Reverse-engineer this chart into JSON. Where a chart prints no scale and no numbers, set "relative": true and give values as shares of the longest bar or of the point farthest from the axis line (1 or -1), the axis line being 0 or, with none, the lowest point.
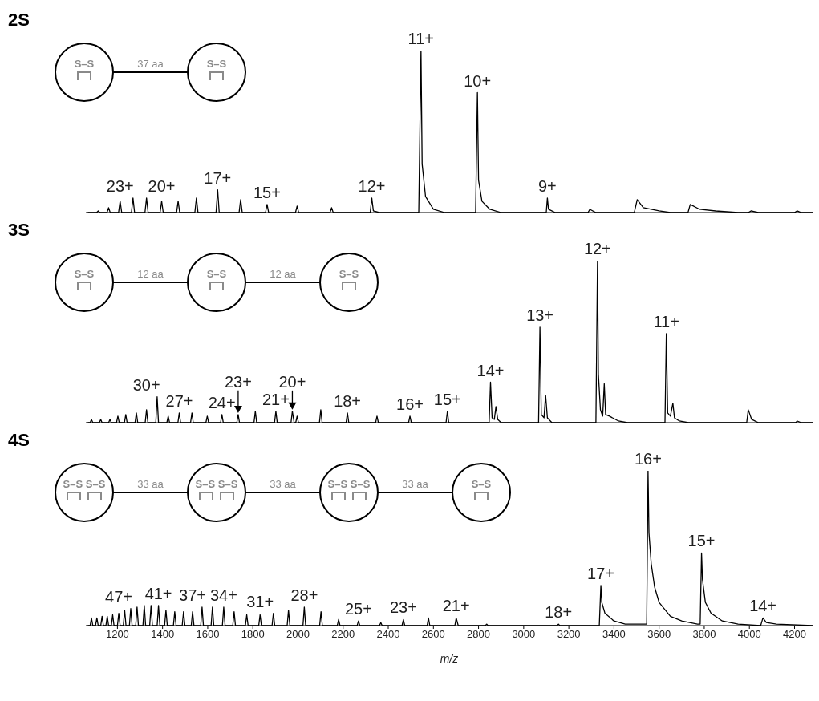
{
  "chart_data": [
    {
      "type": "line",
      "title": "2S",
      "relative": true,
      "xlim": [
        1060,
        4280
      ],
      "xticks": [
        1200,
        1400,
        1600,
        1800,
        2000,
        2200,
        2400,
        2600,
        2800,
        3000,
        3200,
        3400,
        3600,
        3800,
        4000,
        4200
      ],
      "tick_labels": false,
      "series": [
        {
          "color": "#000000",
          "x": [
            1070,
            1108,
            1115,
            1122,
            1154,
            1161,
            1168,
            1205,
            1212,
            1219,
            1262,
            1269,
            1276,
            1322,
            1329,
            1336,
            1389,
            1396,
            1403,
            1462,
            1469,
            1476,
            1543,
            1550,
            1557,
            1637,
            1644,
            1651,
            1739,
            1746,
            1753,
            1856,
            1863,
            1870,
            1989,
            1996,
            2003,
            2142,
            2149,
            2156,
            2320,
            2327,
            2334,
            2360,
            2535,
            2545,
            2550,
            2565,
            2600,
            2650,
            2787,
            2795,
            2800,
            2815,
            2850,
            2900,
            3100,
            3105,
            3110,
            3140,
            3285,
            3293,
            3320,
            3490,
            3503,
            3530,
            3600,
            3650,
            3728,
            3738,
            3780,
            3850,
            3950,
            3995,
            4007,
            4040,
            4200,
            4211,
            4230,
            4280
          ],
          "values": [
            0,
            0,
            0.01,
            0,
            0,
            0.03,
            0,
            0,
            0.07,
            0,
            0,
            0.09,
            0,
            0,
            0.09,
            0,
            0,
            0.07,
            0,
            0,
            0.07,
            0,
            0,
            0.09,
            0,
            0,
            0.14,
            0,
            0,
            0.08,
            0,
            0,
            0.05,
            0,
            0,
            0.04,
            0,
            0,
            0.03,
            0,
            0,
            0.09,
            0.01,
            0,
            0,
            1,
            0.3,
            0.1,
            0.02,
            0,
            0,
            0.74,
            0.2,
            0.07,
            0.02,
            0,
            0,
            0.09,
            0.02,
            0,
            0,
            0.02,
            0,
            0,
            0.08,
            0.03,
            0.01,
            0,
            0,
            0.05,
            0.02,
            0.01,
            0,
            0,
            0.01,
            0,
            0,
            0.01,
            0,
            0
          ]
        }
      ],
      "annotations": [
        "S–S",
        "37 aa",
        "S–S",
        {
          "text": "23+",
          "x": 1212,
          "y": 0.07
        },
        {
          "text": "20+",
          "x": 1396,
          "y": 0.07
        },
        {
          "text": "17+",
          "x": 1644,
          "y": 0.14
        },
        {
          "text": "15+",
          "x": 1863,
          "y": 0.05
        },
        {
          "text": "12+",
          "x": 2327,
          "y": 0.09
        },
        {
          "text": "11+",
          "x": 2545,
          "y": 1
        },
        {
          "text": "10+",
          "x": 2795,
          "y": 0.74
        },
        {
          "text": "9+",
          "x": 3105,
          "y": 0.09
        }
      ]
    },
    {
      "type": "line",
      "title": "3S",
      "relative": true,
      "xlim": [
        1060,
        4280
      ],
      "xticks": [
        1200,
        1400,
        1600,
        1800,
        2000,
        2200,
        2400,
        2600,
        2800,
        3000,
        3200,
        3400,
        3600,
        3800,
        4000,
        4200
      ],
      "tick_labels": false,
      "series": [
        {
          "color": "#000000",
          "x": [
            1070,
            1079,
            1085,
            1091,
            1120,
            1126,
            1132,
            1161,
            1167,
            1173,
            1196,
            1202,
            1208,
            1231,
            1237,
            1243,
            1278,
            1284,
            1290,
            1323,
            1329,
            1335,
            1370,
            1376,
            1382,
            1419,
            1425,
            1431,
            1468,
            1474,
            1480,
            1524,
            1530,
            1536,
            1592,
            1598,
            1604,
            1657,
            1663,
            1669,
            1729,
            1735,
            1741,
            1805,
            1811,
            1817,
            1896,
            1902,
            1908,
            1969,
            1975,
            1983,
            1990,
            1996,
            2002,
            2095,
            2101,
            2107,
            2213,
            2219,
            2225,
            2344,
            2350,
            2356,
            2490,
            2496,
            2502,
            2656,
            2662,
            2668,
            2847,
            2853,
            2860,
            2870,
            2877,
            2885,
            2900,
            3066,
            3072,
            3078,
            3090,
            3097,
            3105,
            3125,
            3320,
            3327,
            3331,
            3340,
            3350,
            3357,
            3363,
            3380,
            3420,
            3460,
            3626,
            3632,
            3638,
            3650,
            3661,
            3668,
            3690,
            3730,
            3988,
            3995,
            4010,
            4040,
            4205,
            4212,
            4230,
            4280
          ],
          "values": [
            0,
            0,
            0.02,
            0,
            0,
            0.02,
            0,
            0,
            0.02,
            0,
            0,
            0.04,
            0,
            0,
            0.05,
            0,
            0,
            0.06,
            0,
            0,
            0.08,
            0,
            0,
            0.16,
            0,
            0,
            0.04,
            0,
            0,
            0.06,
            0,
            0,
            0.06,
            0,
            0,
            0.04,
            0,
            0,
            0.05,
            0,
            0,
            0.05,
            0,
            0,
            0.07,
            0,
            0,
            0.07,
            0,
            0,
            0.07,
            0,
            0,
            0.04,
            0,
            0,
            0.08,
            0,
            0,
            0.06,
            0,
            0,
            0.04,
            0,
            0,
            0.04,
            0,
            0,
            0.07,
            0,
            0,
            0.25,
            0.03,
            0.02,
            0.1,
            0.02,
            0,
            0,
            0.59,
            0.05,
            0.03,
            0.17,
            0.03,
            0,
            0,
            1,
            0.3,
            0.08,
            0.04,
            0.24,
            0.05,
            0.04,
            0.01,
            0,
            0,
            0.55,
            0.06,
            0.04,
            0.12,
            0.03,
            0.01,
            0,
            0,
            0.08,
            0.02,
            0,
            0,
            0.01,
            0,
            0
          ]
        }
      ],
      "annotations": [
        "S–S",
        "12 aa",
        "S–S",
        "12 aa",
        "S–S",
        {
          "text": "30+",
          "x": 1329,
          "y": 0.08
        },
        {
          "text": "27+",
          "x": 1474,
          "y": 0.06
        },
        {
          "text": "24+",
          "x": 1663,
          "y": 0.05
        },
        {
          "text": "23+",
          "x": 1735,
          "y": 0.05
        },
        {
          "text": "21+",
          "x": 1902,
          "y": 0.07
        },
        {
          "text": "20+",
          "x": 1975,
          "y": 0.07
        },
        {
          "text": "18+",
          "x": 2219,
          "y": 0.06
        },
        {
          "text": "16+",
          "x": 2496,
          "y": 0.04
        },
        {
          "text": "15+",
          "x": 2662,
          "y": 0.07
        },
        {
          "text": "14+",
          "x": 2853,
          "y": 0.25
        },
        {
          "text": "13+",
          "x": 3072,
          "y": 0.59
        },
        {
          "text": "12+",
          "x": 3327,
          "y": 1
        },
        {
          "text": "11+",
          "x": 3632,
          "y": 0.55
        }
      ]
    },
    {
      "type": "line",
      "title": "4S",
      "relative": true,
      "xlim": [
        1060,
        4280
      ],
      "xticks": [
        1200,
        1400,
        1600,
        1800,
        2000,
        2200,
        2400,
        2600,
        2800,
        3000,
        3200,
        3400,
        3600,
        3800,
        4000,
        4200
      ],
      "xlabel": "m/z",
      "series": [
        {
          "color": "#000000",
          "x": [
            1070,
            1079,
            1085,
            1091,
            1103,
            1109,
            1115,
            1126,
            1132,
            1138,
            1149,
            1155,
            1161,
            1173,
            1179,
            1185,
            1200,
            1206,
            1212,
            1226,
            1232,
            1238,
            1253,
            1259,
            1265,
            1281,
            1287,
            1293,
            1313,
            1319,
            1325,
            1343,
            1349,
            1355,
            1376,
            1382,
            1388,
            1409,
            1415,
            1421,
            1448,
            1454,
            1460,
            1487,
            1493,
            1499,
            1527,
            1533,
            1539,
            1569,
            1575,
            1581,
            1615,
            1621,
            1627,
            1665,
            1671,
            1677,
            1711,
            1717,
            1723,
            1767,
            1773,
            1779,
            1826,
            1832,
            1838,
            1885,
            1891,
            1897,
            1952,
            1958,
            1964,
            2022,
            2028,
            2034,
            2096,
            2102,
            2108,
            2174,
            2180,
            2186,
            2262,
            2268,
            2274,
            2361,
            2367,
            2373,
            2461,
            2467,
            2473,
            2572,
            2578,
            2584,
            2695,
            2701,
            2710,
            2830,
            2836,
            2842,
            3148,
            3154,
            3160,
            3335,
            3342,
            3346,
            3360,
            3400,
            3450,
            3540,
            3545,
            3551,
            3555,
            3565,
            3580,
            3600,
            3650,
            3700,
            3770,
            3782,
            3788,
            3792,
            3805,
            3830,
            3880,
            3950,
            4050,
            4060,
            4075,
            4120,
            4280
          ],
          "values": [
            0,
            0,
            0.05,
            0,
            0,
            0.05,
            0,
            0,
            0.06,
            0,
            0,
            0.06,
            0,
            0,
            0.07,
            0,
            0,
            0.08,
            0,
            0,
            0.1,
            0,
            0,
            0.11,
            0,
            0,
            0.12,
            0,
            0,
            0.13,
            0,
            0,
            0.13,
            0,
            0,
            0.13,
            0,
            0,
            0.1,
            0,
            0,
            0.09,
            0,
            0,
            0.09,
            0,
            0,
            0.09,
            0,
            0,
            0.12,
            0,
            0,
            0.12,
            0,
            0,
            0.12,
            0,
            0,
            0.09,
            0,
            0,
            0.07,
            0,
            0,
            0.07,
            0,
            0,
            0.08,
            0,
            0,
            0.1,
            0,
            0,
            0.12,
            0,
            0,
            0.09,
            0,
            0,
            0.04,
            0,
            0,
            0.03,
            0,
            0,
            0.02,
            0,
            0,
            0.04,
            0,
            0,
            0.05,
            0,
            0,
            0.05,
            0,
            0,
            0.01,
            0,
            0,
            0.01,
            0,
            0,
            0.26,
            0.15,
            0.08,
            0.03,
            0.01,
            0.01,
            0.01,
            1,
            0.6,
            0.4,
            0.25,
            0.15,
            0.06,
            0.03,
            0.01,
            0.01,
            0.47,
            0.3,
            0.15,
            0.08,
            0.03,
            0.01,
            0,
            0.05,
            0.02,
            0.01,
            0
          ]
        }
      ],
      "annotations": [
        "S–S S–S",
        "33 aa",
        "S–S S–S",
        "33 aa",
        "S–S S–S",
        "33 aa",
        "S–S",
        {
          "text": "47+",
          "x": 1206,
          "y": 0.08
        },
        {
          "text": "41+",
          "x": 1382,
          "y": 0.13
        },
        {
          "text": "37+",
          "x": 1533,
          "y": 0.09
        },
        {
          "text": "34+",
          "x": 1671,
          "y": 0.12
        },
        {
          "text": "31+",
          "x": 1832,
          "y": 0.07
        },
        {
          "text": "28+",
          "x": 2028,
          "y": 0.12
        },
        {
          "text": "25+",
          "x": 2268,
          "y": 0.03
        },
        {
          "text": "23+",
          "x": 2467,
          "y": 0.04
        },
        {
          "text": "21+",
          "x": 2701,
          "y": 0.05
        },
        {
          "text": "18+",
          "x": 3154,
          "y": 0.01
        },
        {
          "text": "17+",
          "x": 3342,
          "y": 0.26
        },
        {
          "text": "16+",
          "x": 3551,
          "y": 1
        },
        {
          "text": "15+",
          "x": 3788,
          "y": 0.47
        },
        {
          "text": "14+",
          "x": 4060,
          "y": 0.05
        }
      ]
    }
  ]
}
